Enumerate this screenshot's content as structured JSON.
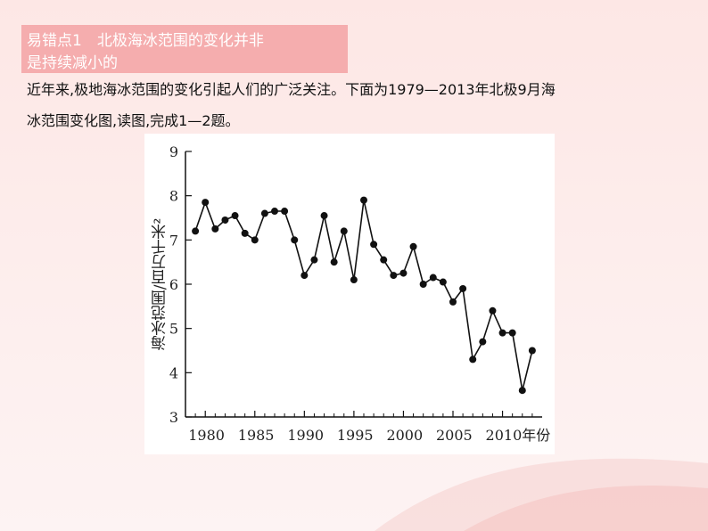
{
  "header": {
    "tag_line1": "易错点1　北极海冰范围的变化并非",
    "tag_line2": "是持续减小的"
  },
  "intro": {
    "line1": "近年来,极地海冰范围的变化引起人们的广泛关注。下面为1979—2013年北极9月海",
    "line2": "冰范围变化图,读图,完成1—2题。"
  },
  "colors": {
    "tag_bg": "#f4a7a9",
    "line": "#111111",
    "wave": "#f6c6c4"
  },
  "chart_data": {
    "type": "line",
    "ylabel": "海冰范围/百万千米²",
    "xunit": "年份",
    "xlim": [
      1978,
      2014
    ],
    "ylim": [
      3,
      9
    ],
    "xticks": [
      1980,
      1985,
      1990,
      1995,
      2000,
      2005,
      2010
    ],
    "xtick_labels": [
      "1980",
      "1985",
      "1990",
      "1995",
      "2000",
      "2005",
      "2010年份"
    ],
    "yticks": [
      3,
      4,
      5,
      6,
      7,
      8,
      9
    ],
    "x": [
      1979,
      1980,
      1981,
      1982,
      1983,
      1984,
      1985,
      1986,
      1987,
      1988,
      1989,
      1990,
      1991,
      1992,
      1993,
      1994,
      1995,
      1996,
      1997,
      1998,
      1999,
      2000,
      2001,
      2002,
      2003,
      2004,
      2005,
      2006,
      2007,
      2008,
      2009,
      2010,
      2011,
      2012,
      2013
    ],
    "series": [
      {
        "values": [
          7.2,
          7.85,
          7.25,
          7.45,
          7.55,
          7.15,
          7.0,
          7.6,
          7.65,
          7.65,
          7.0,
          6.2,
          6.55,
          7.55,
          6.5,
          7.2,
          6.1,
          7.9,
          6.9,
          6.55,
          6.2,
          6.25,
          6.85,
          6.0,
          6.15,
          6.05,
          5.6,
          5.9,
          4.3,
          4.7,
          5.4,
          4.9,
          4.9,
          3.6,
          4.5
        ]
      }
    ]
  }
}
